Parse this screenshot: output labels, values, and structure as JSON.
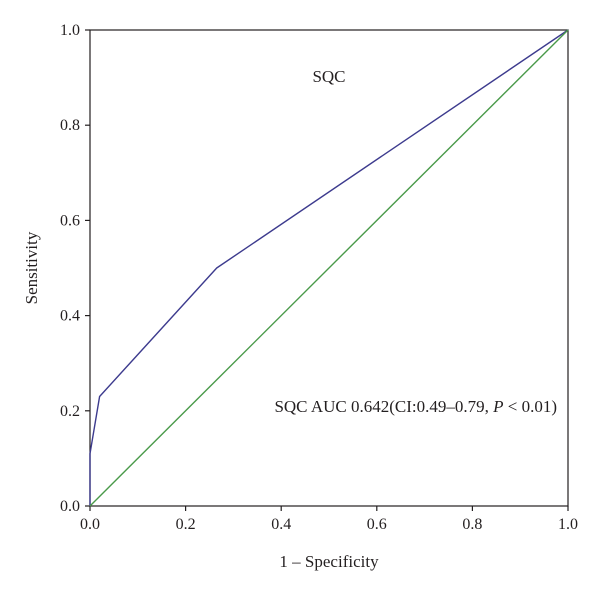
{
  "chart_data": {
    "type": "line",
    "title": "",
    "xlabel": "1 – Specificity",
    "ylabel": "Sensitivity",
    "xlim": [
      0.0,
      1.0
    ],
    "ylim": [
      0.0,
      1.0
    ],
    "x_ticks": [
      "0.0",
      "0.2",
      "0.4",
      "0.6",
      "0.8",
      "1.0"
    ],
    "y_ticks": [
      "0.0",
      "0.2",
      "0.4",
      "0.6",
      "0.8",
      "1.0"
    ],
    "grid": false,
    "series": [
      {
        "color": "#3d3b8e",
        "points": [
          [
            0.0,
            0.0
          ],
          [
            0.0,
            0.11
          ],
          [
            0.02,
            0.23
          ],
          [
            0.265,
            0.5
          ],
          [
            1.0,
            1.0
          ]
        ]
      },
      {
        "color": "#4a9a4a",
        "points": [
          [
            0.0,
            0.0
          ],
          [
            1.0,
            1.0
          ]
        ]
      }
    ],
    "annotations": {
      "series_label": "SQC",
      "auc_text": "SQC AUC 0.642(CI:0.49–0.79, ",
      "p_symbol": "P",
      "p_rest": " < 0.01)"
    }
  }
}
